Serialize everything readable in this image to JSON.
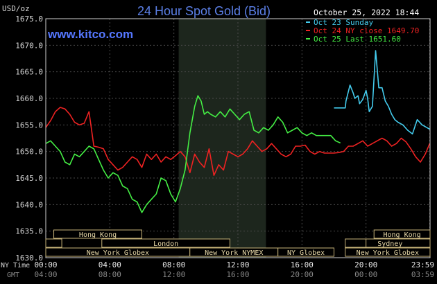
{
  "header": {
    "unit": "USD/oz",
    "title": "24 Hour Spot Gold (Bid)",
    "timestamp": "October 25, 2022 18:44",
    "source": "www.kitco.com"
  },
  "legend": [
    {
      "label": "Oct 23 Sunday",
      "color": "#44ccee"
    },
    {
      "label": "Oct 24 NY close 1649.70",
      "color": "#ee2222"
    },
    {
      "label": "Oct 25 Last 1651.60",
      "color": "#44ee44"
    }
  ],
  "row_labels": {
    "ny_time": "NY Time",
    "gmt": "GMT"
  },
  "x_ticks": [
    {
      "ny": "00:00",
      "gmt": "04:00",
      "h": 0
    },
    {
      "ny": "04:00",
      "gmt": "08:00",
      "h": 4
    },
    {
      "ny": "08:00",
      "gmt": "12:00",
      "h": 8
    },
    {
      "ny": "12:00",
      "gmt": "16:00",
      "h": 12
    },
    {
      "ny": "16:00",
      "gmt": "20:00",
      "h": 16
    },
    {
      "ny": "20:00",
      "gmt": "00:00",
      "h": 20
    },
    {
      "ny": "23:59",
      "gmt": "03:59",
      "h": 23.98
    }
  ],
  "sessions": [
    {
      "name": "Hong Kong",
      "row": 0,
      "start": 0.5,
      "end": 6
    },
    {
      "name": "London",
      "row": 1,
      "start": 3.5,
      "end": 11.5
    },
    {
      "name": "New York Globex",
      "row": 2,
      "start": 0,
      "end": 9
    },
    {
      "name": "New York NYMEX",
      "row": 2,
      "start": 9,
      "end": 14.5
    },
    {
      "name": "NY Globex",
      "row": 2,
      "start": 14.5,
      "end": 18
    },
    {
      "name": "Hong Kong",
      "row": 0,
      "start": 20.5,
      "end": 24
    },
    {
      "name": "Sydney",
      "row": 1,
      "start": 19,
      "end": 24
    },
    {
      "name": "New York Globex",
      "row": 2,
      "start": 18.7,
      "end": 24
    },
    {
      "name": "",
      "row": 1,
      "start": 0,
      "end": 1
    },
    {
      "name": "",
      "row": 1,
      "start": 18.7,
      "end": 20
    }
  ],
  "chart_data": {
    "type": "line",
    "ylim": [
      1630,
      1675
    ],
    "xlim": [
      0,
      24
    ],
    "y_ticks": [
      "1675.0",
      "1670.0",
      "1665.0",
      "1660.0",
      "1655.0",
      "1650.0",
      "1645.0",
      "1640.0",
      "1635.0",
      "1630.0"
    ],
    "shaded_region_hours": [
      8.3,
      13.75
    ],
    "series": [
      {
        "name": "Oct 23 Sunday",
        "color": "#44ccee",
        "x": [
          18.0,
          18.7,
          18.75,
          19.0,
          19.2,
          19.3,
          19.5,
          19.6,
          19.8,
          20.0,
          20.1,
          20.2,
          20.4,
          20.6,
          20.8,
          21.0,
          21.2,
          21.4,
          21.6,
          21.8,
          22.0,
          22.3,
          22.6,
          22.9,
          23.2,
          23.5,
          23.8,
          23.98
        ],
        "values": [
          1658.2,
          1658.2,
          1659.5,
          1662.5,
          1661.0,
          1660.0,
          1660.5,
          1659.0,
          1659.8,
          1661.5,
          1660.0,
          1657.5,
          1658.5,
          1669.0,
          1662.0,
          1662.0,
          1659.5,
          1658.5,
          1657.0,
          1656.0,
          1655.5,
          1655.0,
          1654.0,
          1653.3,
          1656.0,
          1655.0,
          1654.5,
          1654.2
        ]
      },
      {
        "name": "Oct 24 NY close 1649.70",
        "color": "#ee2222",
        "x": [
          0,
          0.3,
          0.6,
          0.9,
          1.2,
          1.5,
          1.8,
          2.1,
          2.4,
          2.7,
          3.0,
          3.3,
          3.6,
          3.9,
          4.2,
          4.5,
          4.8,
          5.1,
          5.4,
          5.7,
          6.0,
          6.3,
          6.6,
          6.9,
          7.2,
          7.5,
          7.8,
          8.1,
          8.4,
          8.7,
          9.0,
          9.3,
          9.6,
          9.9,
          10.2,
          10.5,
          10.8,
          11.1,
          11.4,
          11.7,
          12.0,
          12.3,
          12.6,
          12.9,
          13.2,
          13.5,
          13.8,
          14.1,
          14.4,
          14.7,
          15.0,
          15.3,
          15.6,
          15.9,
          16.2,
          16.5,
          16.8,
          17.1,
          17.4,
          17.7,
          18.0,
          18.3,
          18.6,
          18.9,
          19.2,
          19.5,
          19.8,
          20.1,
          20.4,
          20.7,
          21.0,
          21.3,
          21.6,
          21.9,
          22.2,
          22.5,
          22.8,
          23.1,
          23.4,
          23.7,
          23.98
        ],
        "values": [
          1654.5,
          1655.8,
          1657.5,
          1658.3,
          1658.0,
          1657.0,
          1655.5,
          1655.0,
          1655.3,
          1657.5,
          1651.0,
          1650.8,
          1650.5,
          1648.5,
          1647.5,
          1646.5,
          1647.0,
          1648.0,
          1649.0,
          1648.5,
          1647.0,
          1649.5,
          1648.5,
          1649.5,
          1648.0,
          1649.0,
          1648.5,
          1649.2,
          1650.0,
          1649.0,
          1646.0,
          1649.5,
          1648.0,
          1647.0,
          1650.5,
          1645.5,
          1647.5,
          1646.5,
          1650.0,
          1649.5,
          1649.0,
          1649.5,
          1650.5,
          1652.0,
          1651.0,
          1650.0,
          1650.5,
          1651.5,
          1650.5,
          1649.5,
          1649.0,
          1649.5,
          1651.0,
          1651.0,
          1651.2,
          1650.0,
          1649.5,
          1650.0,
          1649.7,
          1649.7,
          1649.7,
          1649.8,
          1650.0,
          1651.0,
          1651.0,
          1651.5,
          1652.0,
          1651.0,
          1651.5,
          1652.0,
          1652.5,
          1652.0,
          1651.0,
          1651.5,
          1652.5,
          1651.8,
          1650.5,
          1649.0,
          1648.0,
          1649.5,
          1651.5
        ]
      },
      {
        "name": "Oct 25 Last 1651.60",
        "color": "#44ee44",
        "x": [
          0,
          0.3,
          0.6,
          0.9,
          1.2,
          1.5,
          1.8,
          2.1,
          2.4,
          2.7,
          3.0,
          3.3,
          3.6,
          3.9,
          4.2,
          4.5,
          4.8,
          5.1,
          5.4,
          5.7,
          6.0,
          6.3,
          6.6,
          6.9,
          7.2,
          7.5,
          7.8,
          8.1,
          8.4,
          8.7,
          9.0,
          9.3,
          9.5,
          9.7,
          9.9,
          10.1,
          10.3,
          10.6,
          10.9,
          11.2,
          11.5,
          11.8,
          12.1,
          12.4,
          12.7,
          13.0,
          13.3,
          13.6,
          13.9,
          14.2,
          14.5,
          14.8,
          15.1,
          15.4,
          15.7,
          16.0,
          16.3,
          16.6,
          16.9,
          17.2,
          17.5,
          17.8,
          18.1,
          18.4
        ],
        "values": [
          1651.5,
          1652.0,
          1651.0,
          1650.0,
          1648.0,
          1647.5,
          1649.5,
          1649.0,
          1650.0,
          1651.0,
          1650.5,
          1648.5,
          1646.5,
          1645.0,
          1646.0,
          1645.5,
          1643.5,
          1643.0,
          1641.0,
          1640.5,
          1638.5,
          1640.0,
          1641.0,
          1642.0,
          1645.0,
          1644.5,
          1642.0,
          1640.5,
          1643.0,
          1646.5,
          1653.5,
          1658.5,
          1660.5,
          1659.5,
          1657.0,
          1657.5,
          1657.0,
          1656.5,
          1657.5,
          1656.5,
          1658.0,
          1657.0,
          1656.0,
          1657.0,
          1657.5,
          1654.0,
          1653.5,
          1654.5,
          1654.0,
          1655.0,
          1656.5,
          1655.5,
          1653.5,
          1654.0,
          1654.5,
          1653.5,
          1653.0,
          1653.5,
          1653.0,
          1653.0,
          1653.0,
          1653.0,
          1652.0,
          1651.6
        ]
      }
    ]
  }
}
